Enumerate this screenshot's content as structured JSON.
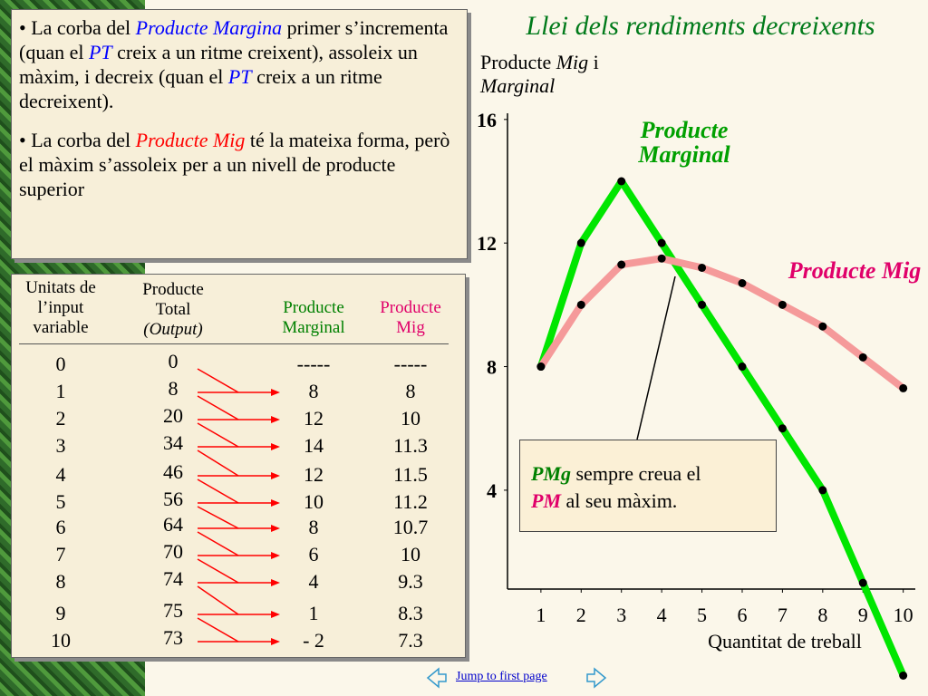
{
  "text_box": {
    "paragraphs": [
      [
        "• La corba del ",
        "Producte Margina",
        " primer s’incrementa (quan el ",
        "PT",
        " creix a un ritme creixent), assoleix un màxim, i decreix (quan el ",
        "PT",
        " creix a un ritme decreixent)."
      ],
      [
        "• La corba del ",
        "Producte Mig",
        " té la mateixa forma, però el màxim s’assoleix per a un nivell de producte superior"
      ]
    ]
  },
  "table": {
    "headers": [
      [
        "Unitats de",
        "l’input",
        "variable"
      ],
      [
        "Producte",
        "Total",
        "(Output)"
      ],
      [
        "Producte",
        "Marginal"
      ],
      [
        "Producte",
        "Mig"
      ]
    ],
    "rows": [
      [
        "0",
        "0",
        "-----",
        "-----"
      ],
      [
        "1",
        "8",
        "8",
        "8"
      ],
      [
        "2",
        "20",
        "12",
        "10"
      ],
      [
        "3",
        "34",
        "14",
        "11.3"
      ],
      [
        "4",
        "46",
        "12",
        "11.5"
      ],
      [
        "5",
        "56",
        "10",
        "11.2"
      ],
      [
        "6",
        "64",
        "8",
        "10.7"
      ],
      [
        "7",
        "70",
        "6",
        "10"
      ],
      [
        "8",
        "74",
        "4",
        "9.3"
      ],
      [
        "9",
        "75",
        "1",
        "8.3"
      ],
      [
        "10",
        "73",
        "- 2",
        "7.3"
      ]
    ]
  },
  "chart_data": {
    "type": "line",
    "title": "Llei dels rendiments decreixents",
    "ylabel": [
      "Producte ",
      "Mig",
      " i",
      "Marginal"
    ],
    "xlabel": "Quantitat de treball",
    "x": [
      1,
      2,
      3,
      4,
      5,
      6,
      7,
      8,
      9,
      10
    ],
    "series": [
      {
        "name": "Producte Marginal",
        "color": "#00e600",
        "values": [
          8,
          12,
          14,
          12,
          10,
          8,
          6,
          4,
          1,
          -2
        ]
      },
      {
        "name": "Producte Mig",
        "color": "#f59a9a",
        "values": [
          8,
          10,
          11.3,
          11.5,
          11.2,
          10.7,
          10,
          9.3,
          8.3,
          7.3
        ]
      }
    ],
    "xlim": [
      0.17,
      10.3
    ],
    "ylim": [
      0.8,
      16.2
    ],
    "xticks": [
      1,
      2,
      3,
      4,
      5,
      6,
      7,
      8,
      9,
      10
    ],
    "yticks": [
      4,
      8,
      12,
      16
    ],
    "annotation": [
      "PMg",
      " sempre creua el ",
      "PM",
      " al seu màxim."
    ]
  },
  "nav": {
    "link": "Jump to first page"
  }
}
